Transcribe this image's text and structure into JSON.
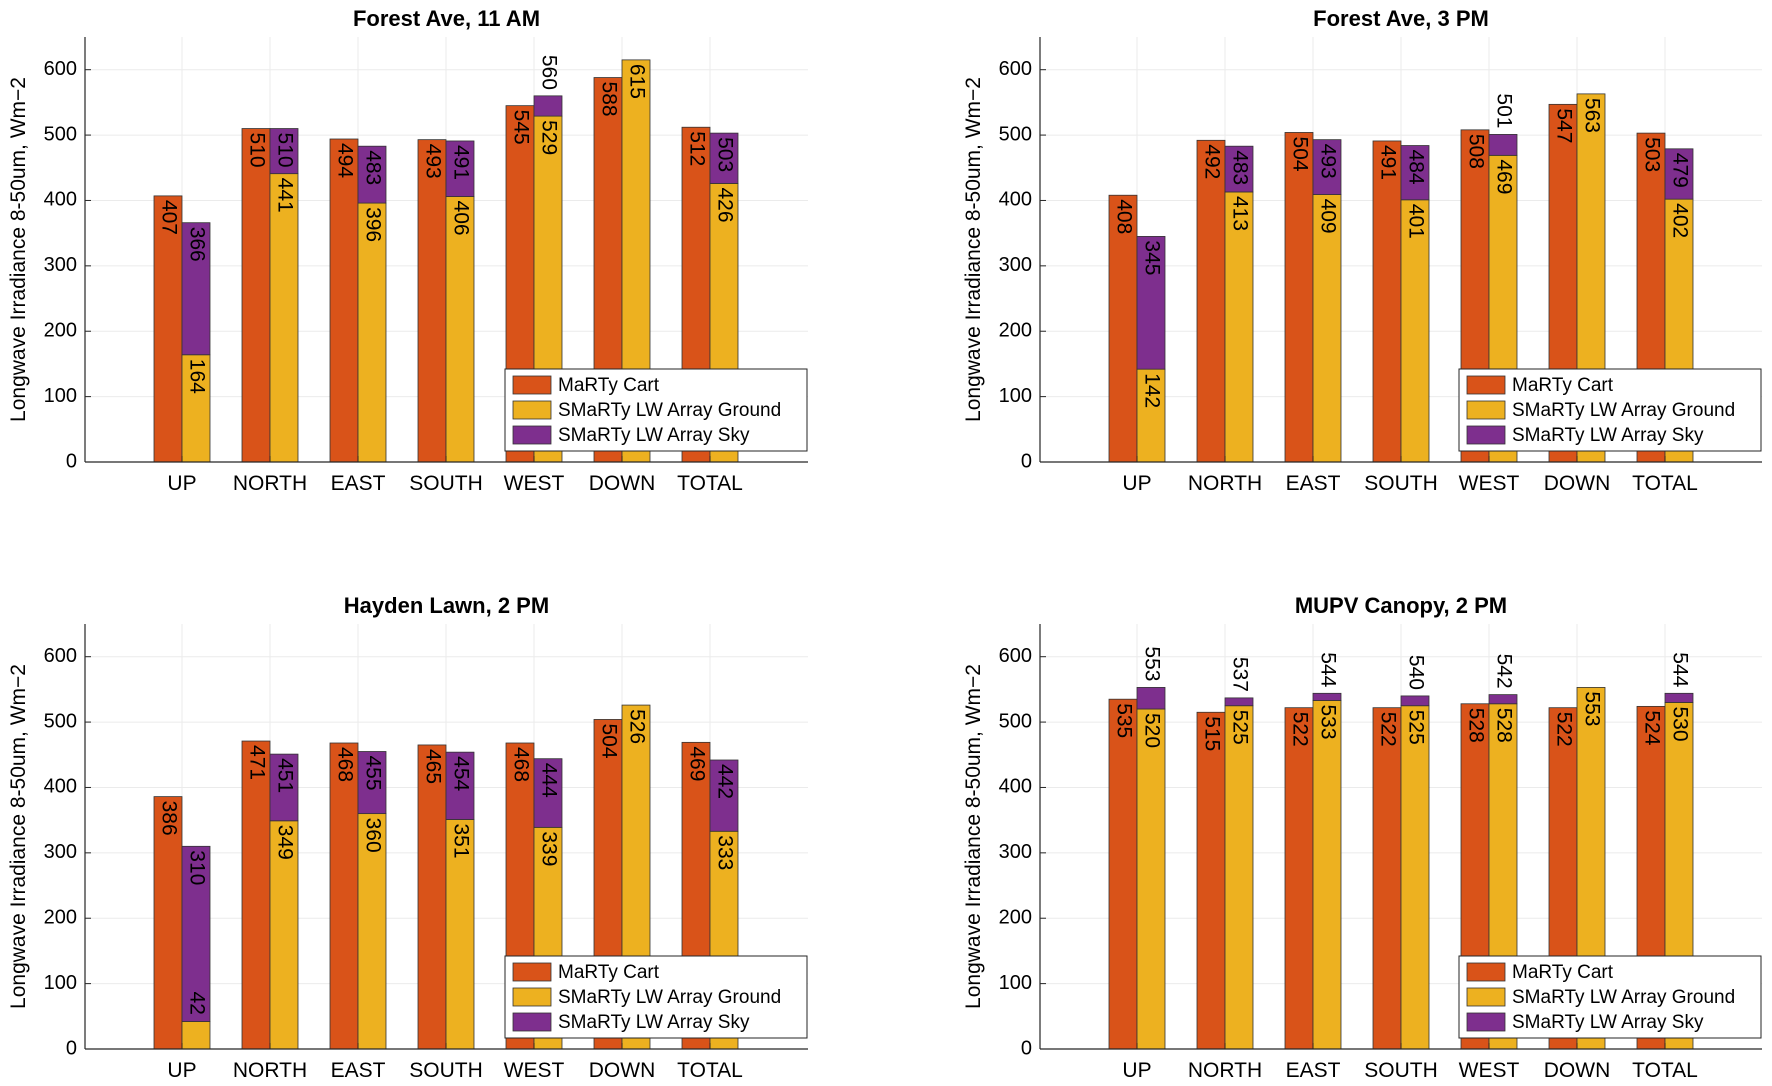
{
  "colors": {
    "cart": "#D95319",
    "ground": "#EDB120",
    "sky": "#7E2F8E",
    "grid": "#EBEBEB",
    "axis": "#262626"
  },
  "chart_data": [
    {
      "type": "bar",
      "title": "Forest Ave, 11 AM",
      "ylabel": "Longwave Irradiance 8-50um, Wm−2",
      "ylim": [
        0,
        650
      ],
      "yticks": [
        "0",
        "100",
        "200",
        "300",
        "400",
        "500",
        "600"
      ],
      "categories": [
        "UP",
        "NORTH",
        "EAST",
        "SOUTH",
        "WEST",
        "DOWN",
        "TOTAL"
      ],
      "cart": [
        407,
        510,
        494,
        493,
        545,
        588,
        512
      ],
      "ground": [
        164,
        441,
        396,
        406,
        529,
        615,
        426
      ],
      "total": [
        366,
        510,
        483,
        491,
        560,
        null,
        503
      ],
      "legend": [
        "MaRTy Cart",
        "SMaRTy LW Array Ground",
        "SMaRTy LW Array Sky"
      ],
      "legend_position": "bottom-right"
    },
    {
      "type": "bar",
      "title": "Forest Ave, 3 PM",
      "ylabel": "Longwave Irradiance 8-50um, Wm−2",
      "ylim": [
        0,
        650
      ],
      "yticks": [
        "0",
        "100",
        "200",
        "300",
        "400",
        "500",
        "600"
      ],
      "categories": [
        "UP",
        "NORTH",
        "EAST",
        "SOUTH",
        "WEST",
        "DOWN",
        "TOTAL"
      ],
      "cart": [
        408,
        492,
        504,
        491,
        508,
        547,
        503
      ],
      "ground": [
        142,
        413,
        409,
        401,
        469,
        563,
        402
      ],
      "total": [
        345,
        483,
        493,
        484,
        501,
        null,
        479
      ],
      "legend": [
        "MaRTy Cart",
        "SMaRTy LW Array Ground",
        "SMaRTy LW Array Sky"
      ],
      "legend_position": "bottom-right"
    },
    {
      "type": "bar",
      "title": "Hayden Lawn, 2 PM",
      "ylabel": "Longwave Irradiance 8-50um, Wm−2",
      "ylim": [
        0,
        650
      ],
      "yticks": [
        "0",
        "100",
        "200",
        "300",
        "400",
        "500",
        "600"
      ],
      "categories": [
        "UP",
        "NORTH",
        "EAST",
        "SOUTH",
        "WEST",
        "DOWN",
        "TOTAL"
      ],
      "cart": [
        386,
        471,
        468,
        465,
        468,
        504,
        469
      ],
      "ground": [
        42,
        349,
        360,
        351,
        339,
        526,
        333
      ],
      "total": [
        310,
        451,
        455,
        454,
        444,
        null,
        442
      ],
      "legend": [
        "MaRTy Cart",
        "SMaRTy LW Array Ground",
        "SMaRTy LW Array Sky"
      ],
      "legend_position": "bottom-right"
    },
    {
      "type": "bar",
      "title": "MUPV Canopy, 2 PM",
      "ylabel": "Longwave Irradiance 8-50um, Wm−2",
      "ylim": [
        0,
        650
      ],
      "yticks": [
        "0",
        "100",
        "200",
        "300",
        "400",
        "500",
        "600"
      ],
      "categories": [
        "UP",
        "NORTH",
        "EAST",
        "SOUTH",
        "WEST",
        "DOWN",
        "TOTAL"
      ],
      "cart": [
        535,
        515,
        522,
        522,
        528,
        522,
        524
      ],
      "ground": [
        520,
        525,
        533,
        525,
        528,
        553,
        530
      ],
      "total": [
        553,
        537,
        544,
        540,
        542,
        null,
        544
      ],
      "legend": [
        "MaRTy Cart",
        "SMaRTy LW Array Ground",
        "SMaRTy LW Array Sky"
      ],
      "legend_position": "bottom-right"
    }
  ]
}
